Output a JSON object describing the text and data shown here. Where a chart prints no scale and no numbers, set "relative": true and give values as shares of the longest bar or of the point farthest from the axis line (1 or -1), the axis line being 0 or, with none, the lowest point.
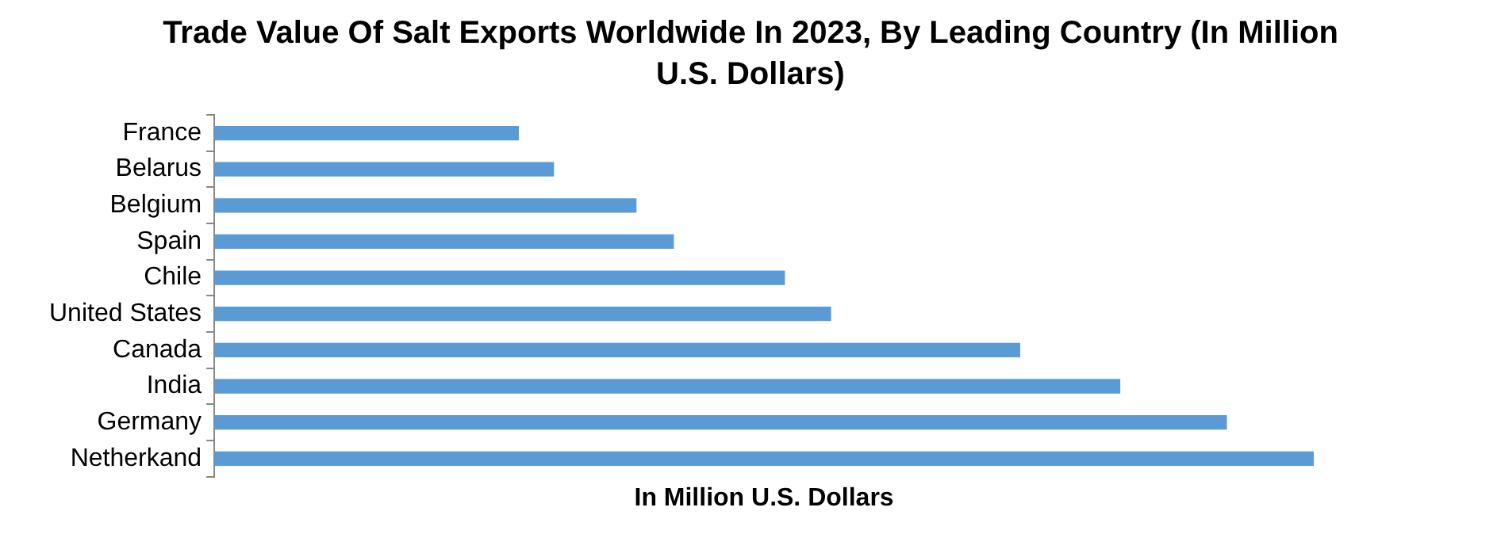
{
  "chart_data": {
    "type": "bar",
    "orientation": "horizontal",
    "relative": true,
    "title": "Trade Value Of Salt Exports Worldwide In 2023, By Leading Country (In Million U.S. Dollars)",
    "xlabel": "In Million U.S. Dollars",
    "categories": [
      "France",
      "Belarus",
      "Belgium",
      "Spain",
      "Chile",
      "United States",
      "Canada",
      "India",
      "Germany",
      "Netherkand"
    ],
    "values": [
      0.277,
      0.309,
      0.384,
      0.418,
      0.519,
      0.561,
      0.733,
      0.824,
      0.921,
      1
    ],
    "color": "#5b9bd5",
    "grid": false,
    "legend": false
  }
}
